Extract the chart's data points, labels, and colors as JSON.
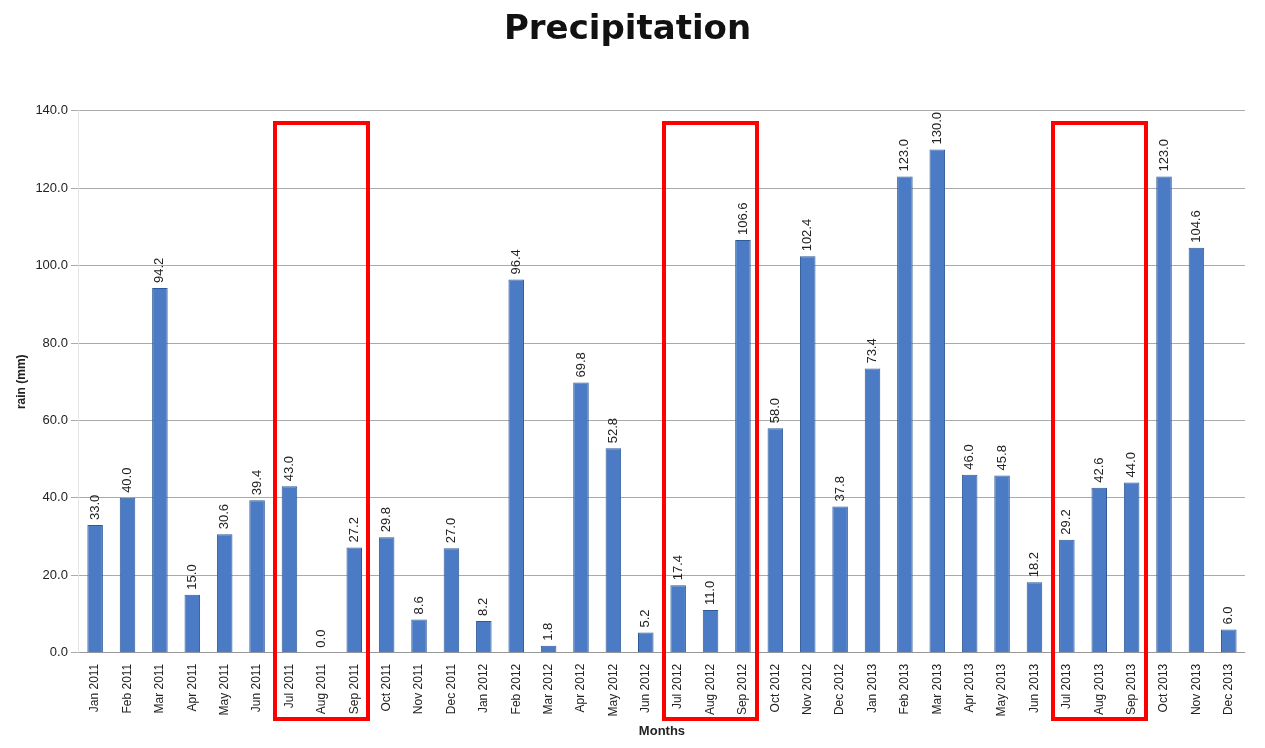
{
  "chart_data": {
    "type": "bar",
    "title": "Precipitation",
    "xlabel": "Months",
    "ylabel": "rain (mm)",
    "categories": [
      "Jan 2011",
      "Feb 2011",
      "Mar 2011",
      "Apr 2011",
      "May 2011",
      "Jun 2011",
      "Jul 2011",
      "Aug 2011",
      "Sep 2011",
      "Oct 2011",
      "Nov 2011",
      "Dec 2011",
      "Jan 2012",
      "Feb 2012",
      "Mar 2012",
      "Apr 2012",
      "May 2012",
      "Jun 2012",
      "Jul 2012",
      "Aug 2012",
      "Sep 2012",
      "Oct 2012",
      "Nov 2012",
      "Dec 2012",
      "Jan 2013",
      "Feb 2013",
      "Mar 2013",
      "Apr 2013",
      "May 2013",
      "Jun 2013",
      "Jul 2013",
      "Aug 2013",
      "Sep 2013",
      "Oct 2013",
      "Nov 2013",
      "Dec 2013"
    ],
    "values": [
      33.0,
      40.0,
      94.2,
      15.0,
      30.6,
      39.4,
      43.0,
      0.0,
      27.2,
      29.8,
      8.6,
      27.0,
      8.2,
      96.4,
      1.8,
      69.8,
      52.8,
      5.2,
      17.4,
      11.0,
      106.6,
      58.0,
      102.4,
      37.8,
      73.4,
      123.0,
      130.0,
      46.0,
      45.8,
      18.2,
      29.2,
      42.6,
      44.0,
      123.0,
      104.6,
      6.0
    ],
    "color": "#4a7bc4",
    "ylim": [
      0,
      140
    ],
    "yticks": [
      {
        "value": 0,
        "label": "0.0"
      },
      {
        "value": 20,
        "label": "20.0"
      },
      {
        "value": 40,
        "label": "40.0"
      },
      {
        "value": 60,
        "label": "60.0"
      },
      {
        "value": 80,
        "label": "80.0"
      },
      {
        "value": 100,
        "label": "100.0"
      },
      {
        "value": 120,
        "label": "120.0"
      },
      {
        "value": 140,
        "label": "140.0"
      }
    ],
    "value_labels": [
      "33.0",
      "40.0",
      "94.2",
      "15.0",
      "30.6",
      "39.4",
      "43.0",
      "0.0",
      "27.2",
      "29.8",
      "8.6",
      "27.0",
      "8.2",
      "96.4",
      "1.8",
      "69.8",
      "52.8",
      "5.2",
      "17.4",
      "11.0",
      "106.6",
      "58.0",
      "102.4",
      "37.8",
      "73.4",
      "123.0",
      "130.0",
      "46.0",
      "45.8",
      "18.2",
      "29.2",
      "42.6",
      "44.0",
      "123.0",
      "104.6",
      "6.0"
    ],
    "grid": "y"
  }
}
